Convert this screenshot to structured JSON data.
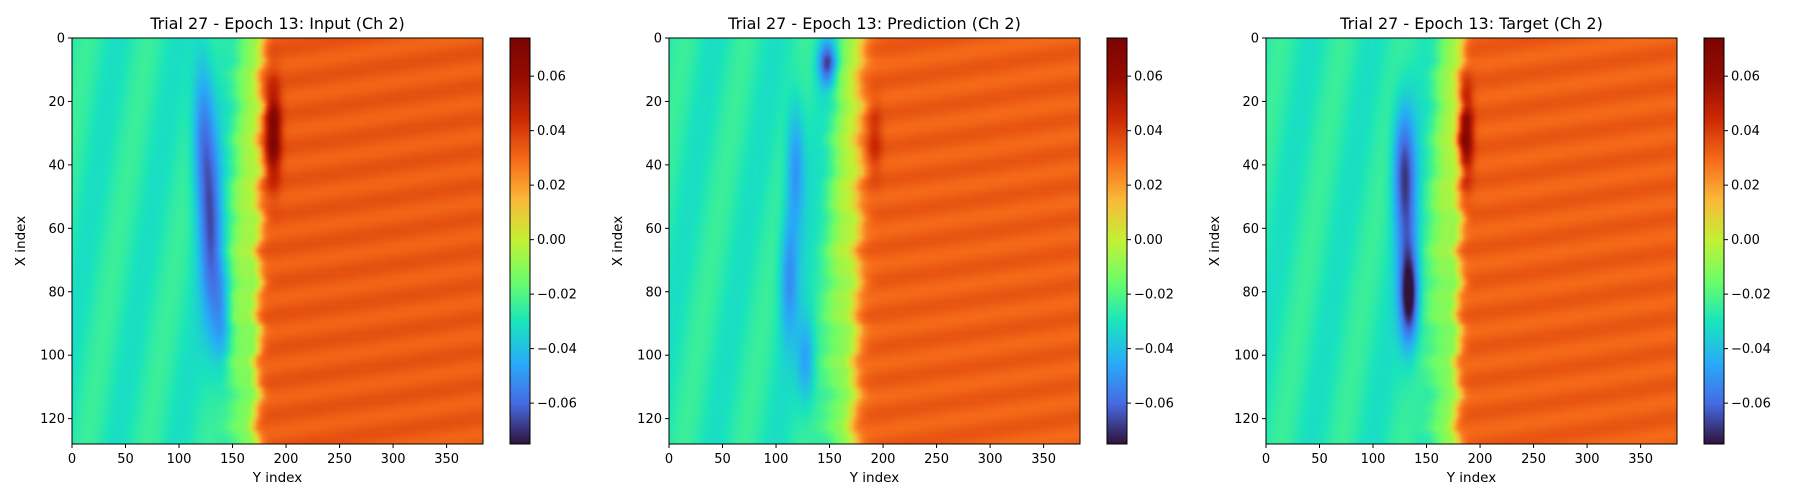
{
  "chart_data": [
    {
      "type": "heatmap",
      "title": "Trial 27 - Epoch 13: Input (Ch 2)",
      "xlabel": "Y index",
      "ylabel": "X index",
      "xlim": [
        0,
        384
      ],
      "ylim": [
        128,
        0
      ],
      "x_ticks": [
        0,
        50,
        100,
        150,
        200,
        250,
        300,
        350
      ],
      "y_ticks": [
        0,
        20,
        40,
        60,
        80,
        100,
        120
      ],
      "colormap": "turbo",
      "colorbar": {
        "range": [
          -0.075,
          0.074
        ],
        "ticks": [
          "0.06",
          "0.04",
          "0.02",
          "0.00",
          "−0.02",
          "−0.04",
          "−0.06"
        ],
        "tick_values": [
          0.06,
          0.04,
          0.02,
          0.0,
          -0.02,
          -0.04,
          -0.06
        ]
      },
      "features": {
        "left_value": -0.028,
        "right_value": 0.033,
        "front_x_top": 176,
        "front_x_bottom": 172,
        "front_width": 3,
        "low_band": [
          {
            "y": 30,
            "x": 122,
            "value": -0.055,
            "sy": 18,
            "sx": 7
          },
          {
            "y": 62,
            "x": 130,
            "value": -0.058,
            "sy": 22,
            "sx": 7
          },
          {
            "y": 88,
            "x": 140,
            "value": -0.05,
            "sy": 12,
            "sx": 6
          }
        ],
        "high_spot": {
          "y": 30,
          "x": 188,
          "value": 0.072,
          "sy": 10,
          "sx": 5
        }
      }
    },
    {
      "type": "heatmap",
      "title": "Trial 27 - Epoch 13: Prediction (Ch 2)",
      "xlabel": "Y index",
      "ylabel": "X index",
      "xlim": [
        0,
        384
      ],
      "ylim": [
        128,
        0
      ],
      "x_ticks": [
        0,
        50,
        100,
        150,
        200,
        250,
        300,
        350
      ],
      "y_ticks": [
        0,
        20,
        40,
        60,
        80,
        100,
        120
      ],
      "colormap": "turbo",
      "colorbar": {
        "range": [
          -0.075,
          0.074
        ],
        "ticks": [
          "0.06",
          "0.04",
          "0.02",
          "0.00",
          "−0.02",
          "−0.04",
          "−0.06"
        ],
        "tick_values": [
          0.06,
          0.04,
          0.02,
          0.0,
          -0.02,
          -0.04,
          -0.06
        ]
      },
      "features": {
        "left_value": -0.028,
        "right_value": 0.032,
        "front_x_top": 178,
        "front_x_bottom": 172,
        "front_width": 4,
        "low_band": [
          {
            "y": 8,
            "x": 148,
            "value": -0.068,
            "sy": 5,
            "sx": 6
          },
          {
            "y": 40,
            "x": 118,
            "value": -0.052,
            "sy": 14,
            "sx": 6
          },
          {
            "y": 75,
            "x": 112,
            "value": -0.05,
            "sy": 14,
            "sx": 6
          },
          {
            "y": 102,
            "x": 128,
            "value": -0.048,
            "sy": 10,
            "sx": 6
          }
        ],
        "high_spot": {
          "y": 32,
          "x": 192,
          "value": 0.045,
          "sy": 8,
          "sx": 5
        }
      }
    },
    {
      "type": "heatmap",
      "title": "Trial 27 - Epoch 13: Target (Ch 2)",
      "xlabel": "Y index",
      "ylabel": "X index",
      "xlim": [
        0,
        384
      ],
      "ylim": [
        128,
        0
      ],
      "x_ticks": [
        0,
        50,
        100,
        150,
        200,
        250,
        300,
        350
      ],
      "y_ticks": [
        0,
        20,
        40,
        60,
        80,
        100,
        120
      ],
      "colormap": "turbo",
      "colorbar": {
        "range": [
          -0.075,
          0.074
        ],
        "ticks": [
          "0.06",
          "0.04",
          "0.02",
          "0.00",
          "−0.02",
          "−0.04",
          "−0.06"
        ],
        "tick_values": [
          0.06,
          0.04,
          0.02,
          0.0,
          -0.02,
          -0.04,
          -0.06
        ]
      },
      "features": {
        "left_value": -0.028,
        "right_value": 0.032,
        "front_x_top": 182,
        "front_x_bottom": 178,
        "front_width": 3,
        "low_band": [
          {
            "y": 40,
            "x": 128,
            "value": -0.055,
            "sy": 14,
            "sx": 7
          },
          {
            "y": 82,
            "x": 134,
            "value": -0.07,
            "sy": 10,
            "sx": 6
          },
          {
            "y": 62,
            "x": 132,
            "value": -0.048,
            "sy": 22,
            "sx": 7
          }
        ],
        "high_spot": {
          "y": 30,
          "x": 186,
          "value": 0.072,
          "sy": 10,
          "sx": 5
        }
      }
    }
  ]
}
